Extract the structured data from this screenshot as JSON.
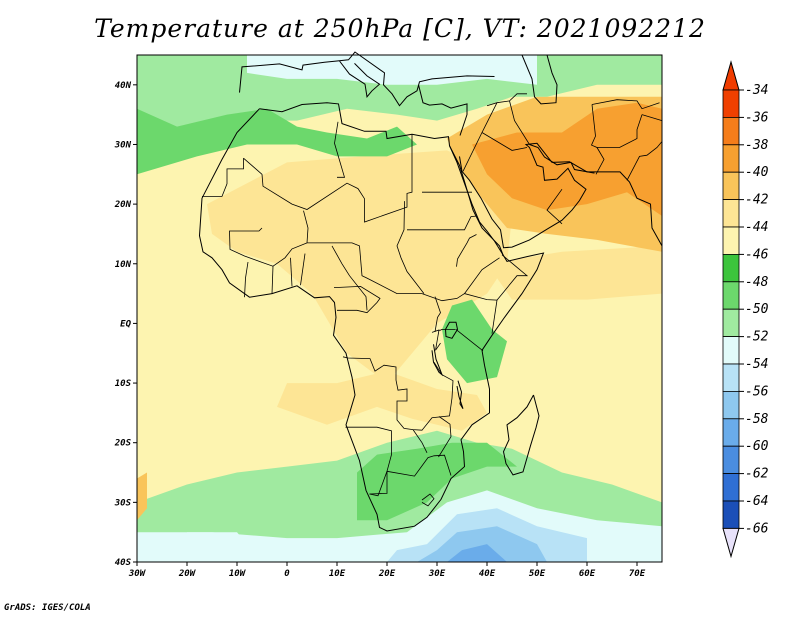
{
  "title": "Temperature at 250hPa [C], VT: 2021092212",
  "credit": "GrADS: IGES/COLA",
  "map": {
    "lon_range": [
      -30,
      75
    ],
    "lat_range": [
      -40,
      45
    ],
    "x_ticks": [
      "30W",
      "20W",
      "10W",
      "0",
      "10E",
      "20E",
      "30E",
      "40E",
      "50E",
      "60E",
      "70E"
    ],
    "x_tick_lons": [
      -30,
      -20,
      -10,
      0,
      10,
      20,
      30,
      40,
      50,
      60,
      70
    ],
    "y_ticks": [
      "40N",
      "30N",
      "20N",
      "10N",
      "EQ",
      "10S",
      "20S",
      "30S",
      "40S"
    ],
    "y_tick_lats": [
      40,
      30,
      20,
      10,
      0,
      -10,
      -20,
      -30,
      -40
    ]
  },
  "colorbar": {
    "labels": [
      "-34",
      "-36",
      "-38",
      "-40",
      "-42",
      "-44",
      "-46",
      "-48",
      "-50",
      "-52",
      "-54",
      "-56",
      "-58",
      "-60",
      "-62",
      "-64",
      "-66"
    ],
    "colors": [
      "#f04000",
      "#f57d1a",
      "#f7a030",
      "#f9c45a",
      "#fde595",
      "#fdf4b0",
      "#3cc43c",
      "#6cd86c",
      "#a0eaa0",
      "#e2fbfa",
      "#b8e2f6",
      "#8ec8ef",
      "#6aacea",
      "#4a8de0",
      "#2f6fd4",
      "#1b4fb8",
      "#0e2f8e"
    ],
    "top_color": "#f03c00",
    "bottom_color": "#e8e2fa"
  }
}
